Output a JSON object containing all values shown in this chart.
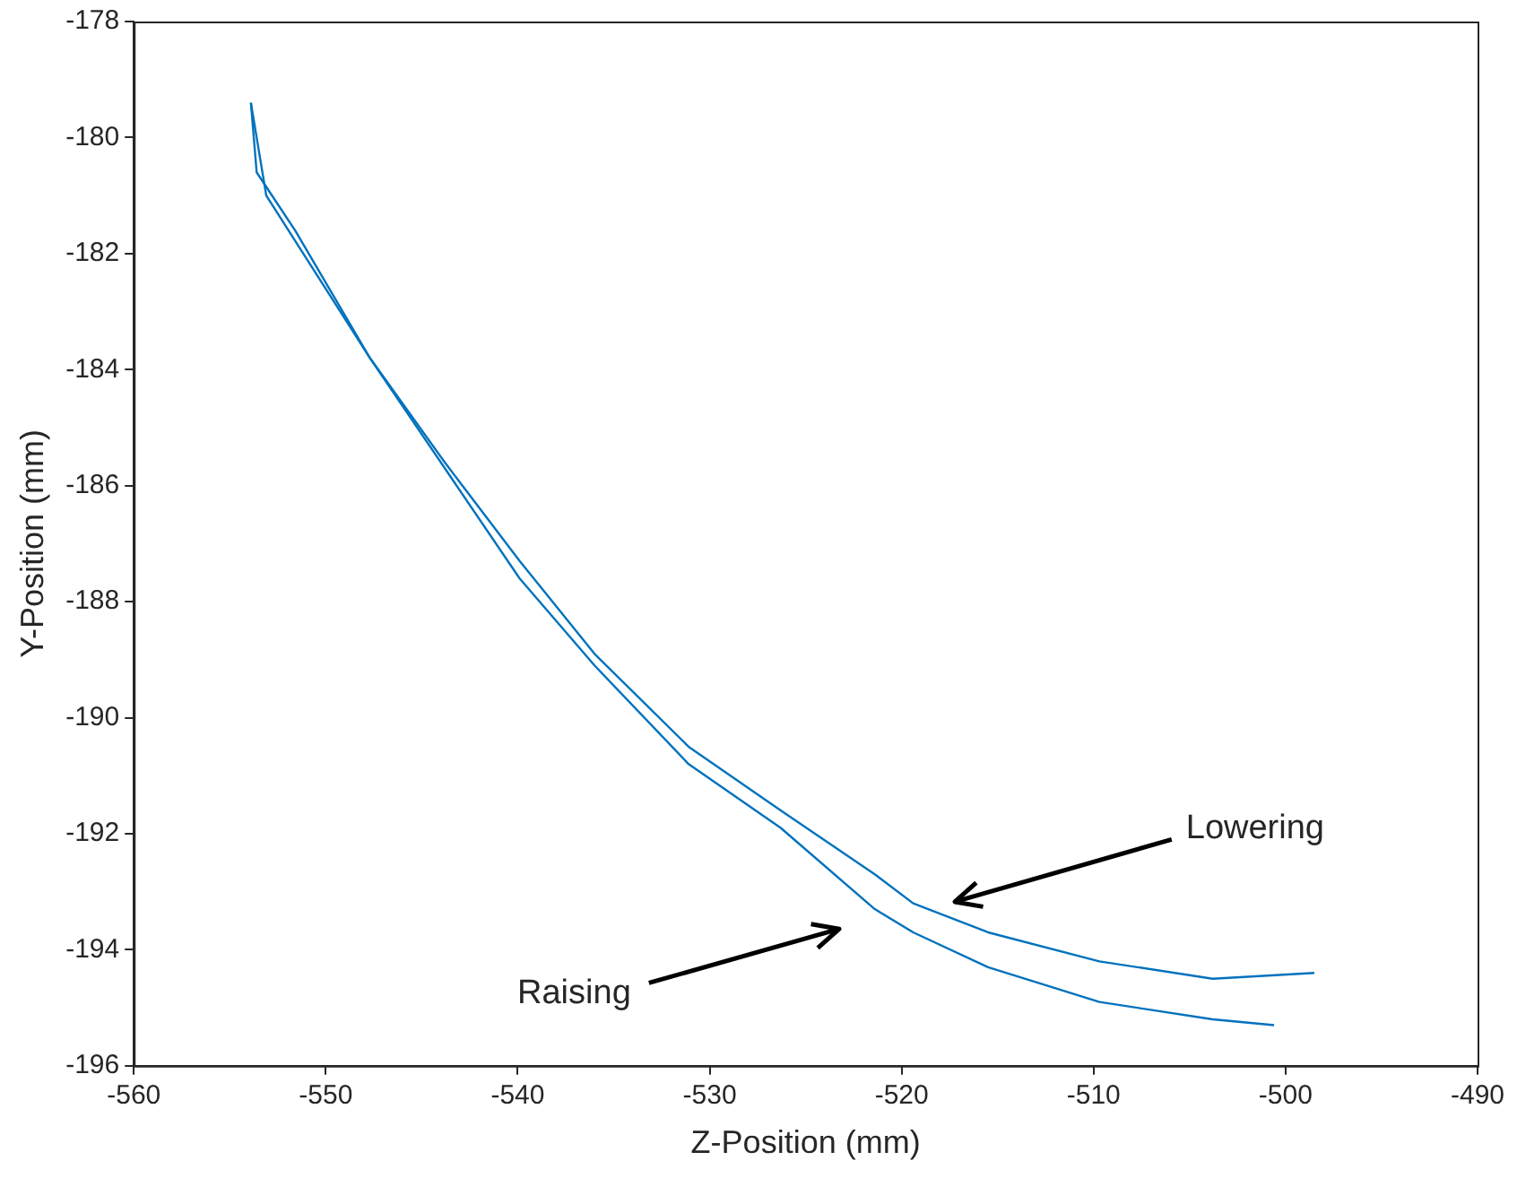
{
  "chart_data": {
    "type": "line",
    "xlabel": "Z-Position (mm)",
    "ylabel": "Y-Position (mm)",
    "xlim": [
      -560,
      -490
    ],
    "xticks": [
      -560,
      -550,
      -540,
      -530,
      -520,
      -510,
      -500,
      -490
    ],
    "ylim": [
      -196,
      -178
    ],
    "yticks": [
      -196,
      -194,
      -192,
      -190,
      -188,
      -186,
      -184,
      -182,
      -180,
      -178
    ],
    "grid": false,
    "legend": false,
    "marker": "none",
    "line_style": "solid",
    "series": [
      {
        "color": "#0072bd",
        "x": [
          -553.9,
          -553.6,
          -551.6,
          -547.7,
          -543.8,
          -539.9,
          -536.0,
          -531.1,
          -526.3,
          -521.4,
          -519.4,
          -515.5,
          -509.7,
          -503.8,
          -498.5
        ],
        "values": [
          -179.4,
          -180.6,
          -181.6,
          -183.8,
          -185.6,
          -187.3,
          -188.9,
          -190.5,
          -191.6,
          -192.7,
          -193.2,
          -193.7,
          -194.2,
          -194.5,
          -194.4
        ]
      },
      {
        "color": "#0072bd",
        "x": [
          -553.9,
          -553.1,
          -547.7,
          -543.8,
          -539.9,
          -536.0,
          -531.1,
          -526.3,
          -521.4,
          -519.4,
          -515.5,
          -509.7,
          -503.8,
          -500.6
        ],
        "values": [
          -179.4,
          -181.0,
          -183.8,
          -185.7,
          -187.6,
          -189.1,
          -190.8,
          -191.9,
          -193.3,
          -193.7,
          -194.3,
          -194.9,
          -195.2,
          -195.3
        ]
      }
    ],
    "annotations": [
      "Lowering",
      "Raising"
    ]
  }
}
